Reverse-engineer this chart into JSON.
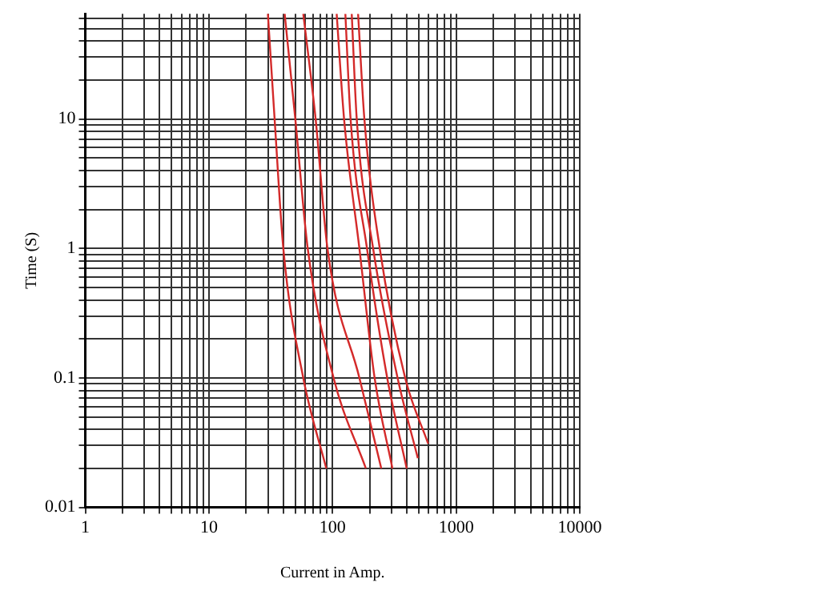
{
  "chart_data": {
    "type": "line",
    "xlabel": "Current in Amp.",
    "ylabel": "Time (S)",
    "log": "xy",
    "grid": true,
    "legend": false,
    "marker": "none",
    "line_style": "solid",
    "xlim": [
      1,
      10000
    ],
    "xticks": [
      1,
      {
        "value": 2,
        "label": null
      },
      {
        "value": 3,
        "label": null
      },
      {
        "value": 4,
        "label": null
      },
      {
        "value": 5,
        "label": null
      },
      {
        "value": 6,
        "label": null
      },
      {
        "value": 7,
        "label": null
      },
      {
        "value": 8,
        "label": null
      },
      {
        "value": 9,
        "label": null
      },
      10,
      {
        "value": 20,
        "label": null
      },
      {
        "value": 30,
        "label": null
      },
      {
        "value": 40,
        "label": null
      },
      {
        "value": 50,
        "label": null
      },
      {
        "value": 60,
        "label": null
      },
      {
        "value": 70,
        "label": null
      },
      {
        "value": 80,
        "label": null
      },
      {
        "value": 90,
        "label": null
      },
      100,
      {
        "value": 200,
        "label": null
      },
      {
        "value": 300,
        "label": null
      },
      {
        "value": 400,
        "label": null
      },
      {
        "value": 500,
        "label": null
      },
      {
        "value": 600,
        "label": null
      },
      {
        "value": 700,
        "label": null
      },
      {
        "value": 800,
        "label": null
      },
      {
        "value": 900,
        "label": null
      },
      1000,
      {
        "value": 2000,
        "label": null
      },
      {
        "value": 3000,
        "label": null
      },
      {
        "value": 4000,
        "label": null
      },
      {
        "value": 5000,
        "label": null
      },
      {
        "value": 6000,
        "label": null
      },
      {
        "value": 7000,
        "label": null
      },
      {
        "value": 8000,
        "label": null
      },
      {
        "value": 9000,
        "label": null
      },
      10000
    ],
    "ylim": [
      0.01,
      65
    ],
    "yticks": [
      0.01,
      {
        "value": 0.02,
        "label": null
      },
      {
        "value": 0.03,
        "label": null
      },
      {
        "value": 0.04,
        "label": null
      },
      {
        "value": 0.05,
        "label": null
      },
      {
        "value": 0.06,
        "label": null
      },
      {
        "value": 0.07,
        "label": null
      },
      {
        "value": 0.08,
        "label": null
      },
      {
        "value": 0.09,
        "label": null
      },
      0.1,
      {
        "value": 0.2,
        "label": null
      },
      {
        "value": 0.3,
        "label": null
      },
      {
        "value": 0.4,
        "label": null
      },
      {
        "value": 0.5,
        "label": null
      },
      {
        "value": 0.6,
        "label": null
      },
      {
        "value": 0.7,
        "label": null
      },
      {
        "value": 0.8,
        "label": null
      },
      {
        "value": 0.9,
        "label": null
      },
      1,
      {
        "value": 2,
        "label": null
      },
      {
        "value": 3,
        "label": null
      },
      {
        "value": 4,
        "label": null
      },
      {
        "value": 5,
        "label": null
      },
      {
        "value": 6,
        "label": null
      },
      {
        "value": 7,
        "label": null
      },
      {
        "value": 8,
        "label": null
      },
      {
        "value": 9,
        "label": null
      },
      10,
      {
        "value": 20,
        "label": null
      },
      {
        "value": 30,
        "label": null
      },
      {
        "value": 40,
        "label": null
      },
      {
        "value": 50,
        "label": null
      },
      {
        "value": 60,
        "label": null
      }
    ],
    "series": [
      {
        "color": "#d42a2a",
        "x": [
          30,
          34,
          40,
          58,
          89
        ],
        "values": [
          65,
          10,
          1,
          0.1,
          0.02
        ]
      },
      {
        "color": "#d42a2a",
        "x": [
          41,
          50,
          63,
          102,
          186
        ],
        "values": [
          65,
          10,
          1,
          0.1,
          0.02
        ]
      },
      {
        "color": "#d42a2a",
        "x": [
          58,
          73,
          91,
          165,
          248
        ],
        "values": [
          65,
          10,
          1,
          0.1,
          0.02
        ]
      },
      {
        "color": "#d42a2a",
        "x": [
          108,
          124,
          165,
          219,
          305
        ],
        "values": [
          65,
          10,
          1,
          0.1,
          0.02
        ]
      },
      {
        "color": "#d42a2a",
        "x": [
          127,
          140,
          190,
          277,
          398
        ],
        "values": [
          65,
          10,
          1,
          0.1,
          0.02
        ]
      },
      {
        "color": "#d42a2a",
        "x": [
          143,
          157,
          213,
          336,
          490
        ],
        "values": [
          65,
          10,
          1,
          0.1,
          0.024
        ]
      },
      {
        "color": "#d42a2a",
        "x": [
          161,
          181,
          241,
          387,
          594
        ],
        "values": [
          65,
          10,
          1,
          0.1,
          0.031
        ]
      }
    ]
  }
}
